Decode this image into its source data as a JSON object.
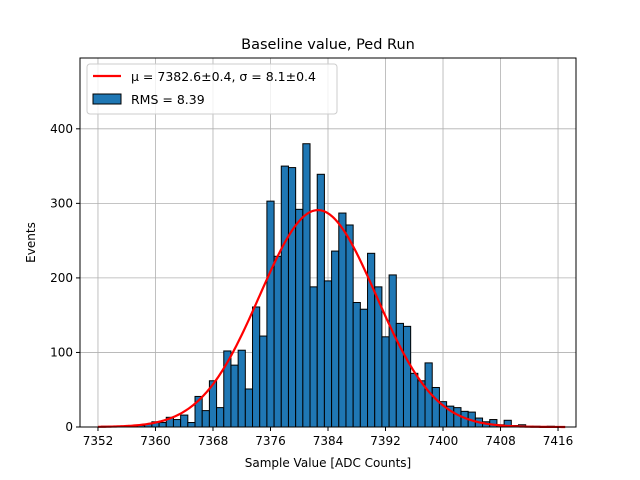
{
  "chart_data": {
    "type": "bar",
    "title": "Baseline value, Ped Run",
    "xlabel": "Sample Value [ADC Counts]",
    "ylabel": "Events",
    "xlim": [
      7349.5,
      7418.5
    ],
    "ylim": [
      0,
      495
    ],
    "xticks": [
      7352,
      7360,
      7368,
      7376,
      7384,
      7392,
      7400,
      7408,
      7416
    ],
    "yticks": [
      0,
      100,
      200,
      300,
      400
    ],
    "grid": true,
    "legend_position": "top-left",
    "bin_width": 1,
    "bins": [
      {
        "x": 7353,
        "y": 1
      },
      {
        "x": 7354,
        "y": 1
      },
      {
        "x": 7355,
        "y": 1
      },
      {
        "x": 7356,
        "y": 0
      },
      {
        "x": 7357,
        "y": 1
      },
      {
        "x": 7358,
        "y": 2
      },
      {
        "x": 7359,
        "y": 4
      },
      {
        "x": 7360,
        "y": 7
      },
      {
        "x": 7361,
        "y": 6
      },
      {
        "x": 7362,
        "y": 13
      },
      {
        "x": 7363,
        "y": 10
      },
      {
        "x": 7364,
        "y": 16
      },
      {
        "x": 7365,
        "y": 6
      },
      {
        "x": 7366,
        "y": 41
      },
      {
        "x": 7367,
        "y": 22
      },
      {
        "x": 7368,
        "y": 62
      },
      {
        "x": 7369,
        "y": 26
      },
      {
        "x": 7370,
        "y": 102
      },
      {
        "x": 7371,
        "y": 83
      },
      {
        "x": 7372,
        "y": 103
      },
      {
        "x": 7373,
        "y": 51
      },
      {
        "x": 7374,
        "y": 161
      },
      {
        "x": 7375,
        "y": 122
      },
      {
        "x": 7376,
        "y": 303
      },
      {
        "x": 7377,
        "y": 229
      },
      {
        "x": 7378,
        "y": 350
      },
      {
        "x": 7379,
        "y": 348
      },
      {
        "x": 7380,
        "y": 292
      },
      {
        "x": 7381,
        "y": 380
      },
      {
        "x": 7382,
        "y": 188
      },
      {
        "x": 7383,
        "y": 339
      },
      {
        "x": 7384,
        "y": 196
      },
      {
        "x": 7385,
        "y": 236
      },
      {
        "x": 7386,
        "y": 287
      },
      {
        "x": 7387,
        "y": 271
      },
      {
        "x": 7388,
        "y": 167
      },
      {
        "x": 7389,
        "y": 158
      },
      {
        "x": 7390,
        "y": 233
      },
      {
        "x": 7391,
        "y": 188
      },
      {
        "x": 7392,
        "y": 121
      },
      {
        "x": 7393,
        "y": 204
      },
      {
        "x": 7394,
        "y": 139
      },
      {
        "x": 7395,
        "y": 135
      },
      {
        "x": 7396,
        "y": 72
      },
      {
        "x": 7397,
        "y": 62
      },
      {
        "x": 7398,
        "y": 86
      },
      {
        "x": 7399,
        "y": 53
      },
      {
        "x": 7400,
        "y": 34
      },
      {
        "x": 7401,
        "y": 28
      },
      {
        "x": 7402,
        "y": 26
      },
      {
        "x": 7403,
        "y": 21
      },
      {
        "x": 7404,
        "y": 20
      },
      {
        "x": 7405,
        "y": 12
      },
      {
        "x": 7406,
        "y": 7
      },
      {
        "x": 7407,
        "y": 10
      },
      {
        "x": 7408,
        "y": 3
      },
      {
        "x": 7409,
        "y": 9
      },
      {
        "x": 7410,
        "y": 2
      },
      {
        "x": 7411,
        "y": 3
      },
      {
        "x": 7412,
        "y": 1
      },
      {
        "x": 7413,
        "y": 1
      },
      {
        "x": 7414,
        "y": 0
      },
      {
        "x": 7415,
        "y": 1
      }
    ],
    "series": [
      {
        "name": "RMS = 8.39",
        "kind": "histogram",
        "color": "#1f77b4"
      },
      {
        "name": "μ = 7382.6±0.4, σ = 8.1±0.4",
        "kind": "gaussian_fit",
        "color": "#ff0000",
        "mu": 7382.6,
        "sigma": 8.1,
        "amplitude": 291,
        "x_range": [
          7352,
          7417
        ]
      }
    ]
  }
}
